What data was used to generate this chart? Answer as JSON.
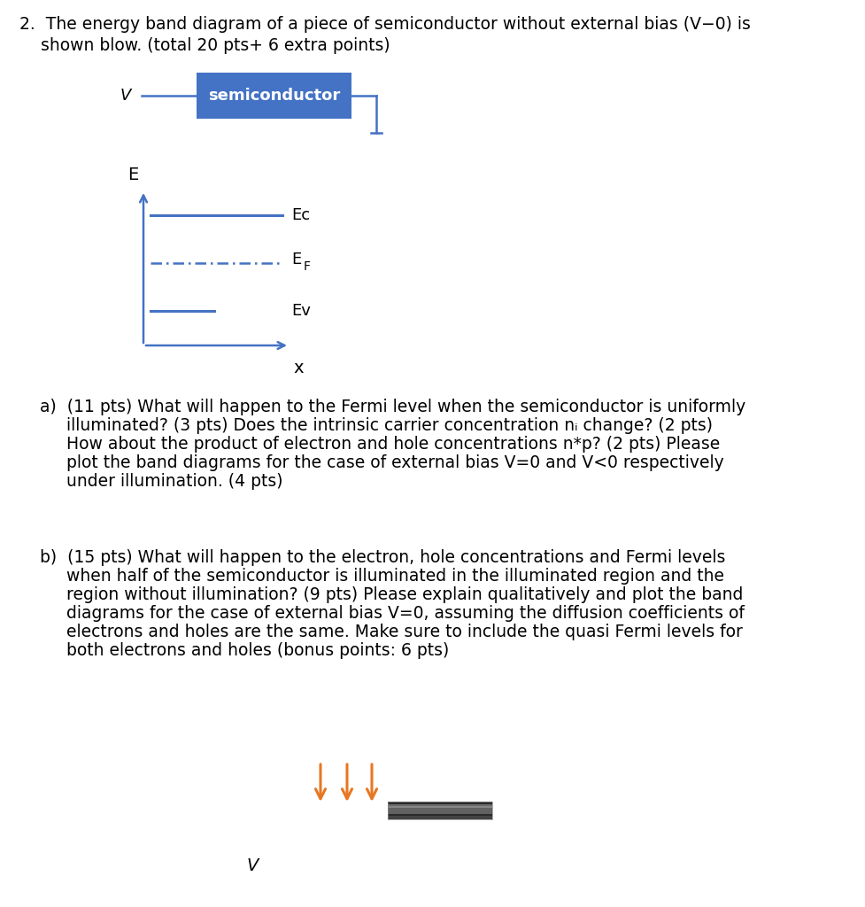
{
  "bg_color": "#ffffff",
  "text_color": "#000000",
  "blue_color": "#4472C4",
  "orange_color": "#E87722",
  "title_line1": "2.  The energy band diagram of a piece of semiconductor without external bias (V−0) is",
  "title_line2": "    shown blow. (total 20 pts+ 6 extra points)",
  "semiconductor_text": "semiconductor",
  "ec_label": "Ec",
  "ef_label": "E",
  "ef_sub": "F",
  "ev_label": "Ev",
  "e_axis_label": "E",
  "x_axis_label": "x",
  "v_label_circuit": "V",
  "v_label_bottom": "V",
  "part_a_line1": "a)  (11 pts) What will happen to the Fermi level when the semiconductor is uniformly",
  "part_a_line2": "     illuminated? (3 pts) Does the intrinsic carrier concentration nᵢ change? (2 pts)",
  "part_a_line3": "     How about the product of electron and hole concentrations n*p? (2 pts) Please",
  "part_a_line4": "     plot the band diagrams for the case of external bias V=0 and V<0 respectively",
  "part_a_line5": "     under illumination. (4 pts)",
  "part_b_line1": "b)  (15 pts) What will happen to the electron, hole concentrations and Fermi levels",
  "part_b_line2": "     when half of the semiconductor is illuminated in the illuminated region and the",
  "part_b_line3": "     region without illumination? (9 pts) Please explain qualitatively and plot the band",
  "part_b_line4": "     diagrams for the case of external bias V=0, assuming the diffusion coefficients of",
  "part_b_line5": "     electrons and holes are the same. Make sure to include the quasi Fermi levels for",
  "part_b_line6": "     both electrons and holes (bonus points: 6 pts)",
  "fig_width": 9.78,
  "fig_height": 10.24,
  "dpi": 100
}
